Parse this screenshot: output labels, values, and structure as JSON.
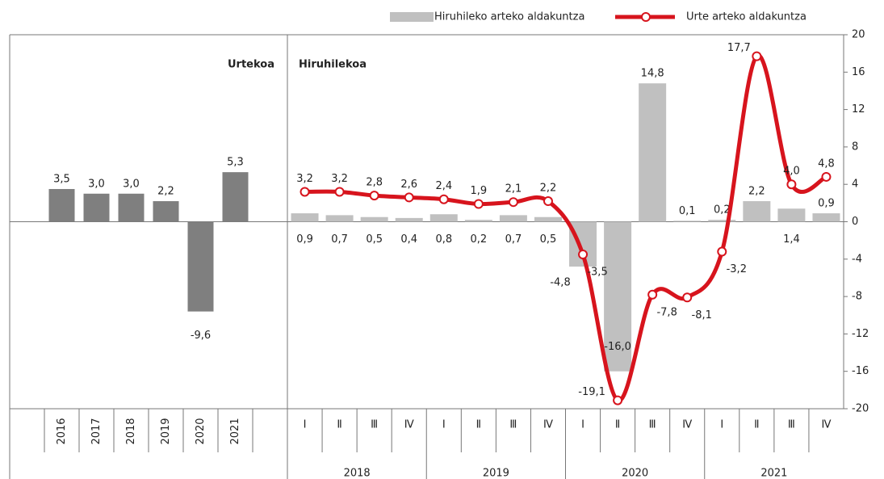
{
  "chart_data": [
    {
      "type": "bar",
      "title": "Urtekoa",
      "categories": [
        "2016",
        "2017",
        "2018",
        "2019",
        "2020",
        "2021"
      ],
      "values": [
        3.5,
        3.0,
        3.0,
        2.2,
        -9.6,
        5.3
      ],
      "value_labels": [
        "3,5",
        "3,0",
        "3,0",
        "2,2",
        "-9,6",
        "5,3"
      ],
      "color": "#7f7f7f",
      "ylim": [
        -20,
        20
      ]
    },
    {
      "type": "combo",
      "title": "Hiruhilekoa",
      "categories": [
        "Ⅰ",
        "Ⅱ",
        "Ⅲ",
        "Ⅳ",
        "Ⅰ",
        "Ⅱ",
        "Ⅲ",
        "Ⅳ",
        "Ⅰ",
        "Ⅱ",
        "Ⅲ",
        "Ⅳ",
        "Ⅰ",
        "Ⅱ",
        "Ⅲ",
        "Ⅳ"
      ],
      "years": [
        "2018",
        "2019",
        "2020",
        "2021"
      ],
      "series": [
        {
          "name": "Hiruhileko arteko aldakuntza",
          "type": "bar",
          "color": "#c0c0c0",
          "values": [
            0.9,
            0.7,
            0.5,
            0.4,
            0.8,
            0.2,
            0.7,
            0.5,
            -4.8,
            -16.0,
            14.8,
            0.1,
            0.2,
            2.2,
            1.4,
            0.9
          ],
          "value_labels": [
            "0,9",
            "0,7",
            "0,5",
            "0,4",
            "0,8",
            "0,2",
            "0,7",
            "0,5",
            "-4,8",
            "-16,0",
            "14,8",
            "0,1",
            "0,2",
            "2,2",
            "1,4",
            "0,9"
          ]
        },
        {
          "name": "Urte arteko aldakuntza",
          "type": "line",
          "color": "#d7141d",
          "values": [
            3.2,
            3.2,
            2.8,
            2.6,
            2.4,
            1.9,
            2.1,
            2.2,
            -3.5,
            -19.1,
            -7.8,
            -8.1,
            -3.2,
            17.7,
            4.0,
            4.8
          ],
          "value_labels": [
            "3,2",
            "3,2",
            "2,8",
            "2,6",
            "2,4",
            "1,9",
            "2,1",
            "2,2",
            "-3,5",
            "-19,1",
            "-7,8",
            "-8,1",
            "-3,2",
            "17,7",
            "4,0",
            "4,8"
          ]
        }
      ],
      "ylim": [
        -20,
        20
      ],
      "yticks": [
        20,
        16,
        12,
        8,
        4,
        0,
        -4,
        -8,
        -12,
        -16,
        -20
      ]
    }
  ]
}
